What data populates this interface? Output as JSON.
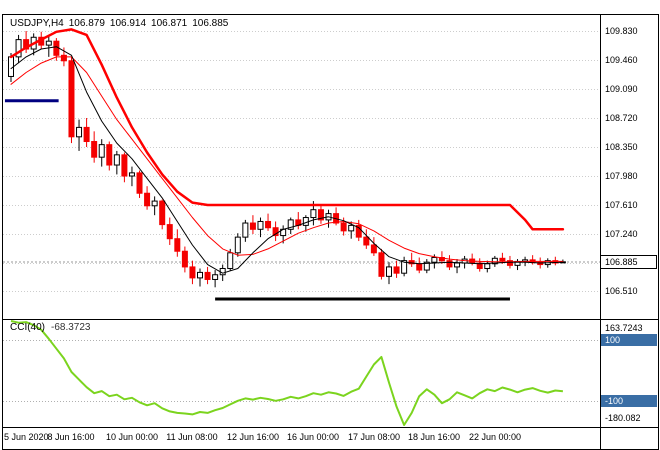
{
  "header": {
    "symbol": "USDJPY,H4",
    "open": "106.879",
    "high": "106.914",
    "low": "106.871",
    "close": "106.885"
  },
  "colors": {
    "background": "#ffffff",
    "frame": "#000000",
    "grid": "#cdcdcd",
    "separator": "#000000",
    "bull_body": "#ffffff",
    "bull_outline": "#000000",
    "bear_body": "#f40000",
    "current_price_line": "#999999",
    "cci_line": "#7bd41e",
    "level_box": "#3a6ea5",
    "level_line": "#b0b0b0",
    "blue_hline": "#000080",
    "black_hline": "#000000"
  },
  "chart_data": {
    "type": "candlestick",
    "symbol": "USDJPY",
    "timeframe": "H4",
    "main": {
      "current_price": 106.885,
      "current_price_label": "106.885",
      "price_axis": {
        "labels": [
          "109.830",
          "109.460",
          "109.090",
          "108.720",
          "108.350",
          "107.980",
          "107.610",
          "107.240",
          "106.510"
        ],
        "values": [
          109.83,
          109.46,
          109.09,
          108.72,
          108.35,
          107.98,
          107.61,
          107.24,
          106.51
        ]
      },
      "grid_prices": [
        109.83,
        109.46,
        109.09,
        108.72,
        108.35,
        107.98,
        107.61,
        107.24,
        106.87,
        106.51
      ],
      "candles": [
        [
          109.25,
          109.55,
          109.18,
          109.5
        ],
        [
          109.5,
          109.78,
          109.42,
          109.72
        ],
        [
          109.72,
          109.83,
          109.55,
          109.6
        ],
        [
          109.6,
          109.8,
          109.52,
          109.75
        ],
        [
          109.75,
          109.82,
          109.6,
          109.65
        ],
        [
          109.65,
          109.76,
          109.5,
          109.7
        ],
        [
          109.7,
          109.74,
          109.45,
          109.52
        ],
        [
          109.52,
          109.62,
          109.38,
          109.45
        ],
        [
          109.45,
          109.5,
          108.4,
          108.48
        ],
        [
          108.48,
          108.7,
          108.3,
          108.6
        ],
        [
          108.6,
          108.72,
          108.35,
          108.42
        ],
        [
          108.42,
          108.55,
          108.15,
          108.22
        ],
        [
          108.22,
          108.45,
          108.1,
          108.38
        ],
        [
          108.38,
          108.42,
          108.05,
          108.12
        ],
        [
          108.12,
          108.3,
          108.0,
          108.25
        ],
        [
          108.25,
          108.28,
          107.9,
          107.98
        ],
        [
          107.98,
          108.1,
          107.85,
          108.02
        ],
        [
          108.02,
          108.05,
          107.7,
          107.76
        ],
        [
          107.76,
          107.85,
          107.55,
          107.6
        ],
        [
          107.6,
          107.72,
          107.48,
          107.66
        ],
        [
          107.66,
          107.68,
          107.3,
          107.36
        ],
        [
          107.36,
          107.45,
          107.1,
          107.18
        ],
        [
          107.18,
          107.3,
          106.95,
          107.02
        ],
        [
          107.02,
          107.08,
          106.75,
          106.82
        ],
        [
          106.82,
          106.9,
          106.6,
          106.68
        ],
        [
          106.68,
          106.8,
          106.57,
          106.75
        ],
        [
          106.75,
          106.82,
          106.6,
          106.66
        ],
        [
          106.66,
          106.78,
          106.56,
          106.72
        ],
        [
          106.72,
          106.85,
          106.64,
          106.8
        ],
        [
          106.8,
          107.05,
          106.77,
          107.0
        ],
        [
          107.0,
          107.25,
          106.95,
          107.2
        ],
        [
          107.2,
          107.42,
          107.14,
          107.38
        ],
        [
          107.38,
          107.48,
          107.24,
          107.3
        ],
        [
          107.3,
          107.45,
          107.2,
          107.4
        ],
        [
          107.4,
          107.5,
          107.28,
          107.32
        ],
        [
          107.32,
          107.4,
          107.15,
          107.22
        ],
        [
          107.22,
          107.35,
          107.12,
          107.3
        ],
        [
          107.3,
          107.45,
          107.24,
          107.42
        ],
        [
          107.42,
          107.52,
          107.3,
          107.35
        ],
        [
          107.35,
          107.48,
          107.27,
          107.45
        ],
        [
          107.45,
          107.66,
          107.35,
          107.55
        ],
        [
          107.55,
          107.6,
          107.37,
          107.42
        ],
        [
          107.42,
          107.55,
          107.32,
          107.5
        ],
        [
          107.5,
          107.58,
          107.35,
          107.38
        ],
        [
          107.38,
          107.45,
          107.22,
          107.28
        ],
        [
          107.28,
          107.4,
          107.18,
          107.35
        ],
        [
          107.35,
          107.42,
          107.15,
          107.2
        ],
        [
          107.2,
          107.3,
          107.05,
          107.1
        ],
        [
          107.1,
          107.2,
          106.96,
          107.0
        ],
        [
          107.0,
          107.05,
          106.66,
          106.7
        ],
        [
          106.7,
          106.88,
          106.6,
          106.82
        ],
        [
          106.82,
          106.9,
          106.68,
          106.74
        ],
        [
          106.74,
          106.95,
          106.7,
          106.9
        ],
        [
          106.9,
          107.0,
          106.82,
          106.86
        ],
        [
          106.86,
          106.94,
          106.74,
          106.78
        ],
        [
          106.78,
          106.92,
          106.74,
          106.88
        ],
        [
          106.88,
          106.98,
          106.8,
          106.94
        ],
        [
          106.94,
          107.02,
          106.86,
          106.9
        ],
        [
          106.9,
          106.97,
          106.78,
          106.82
        ],
        [
          106.82,
          106.92,
          106.74,
          106.87
        ],
        [
          106.87,
          106.96,
          106.8,
          106.92
        ],
        [
          106.92,
          106.99,
          106.84,
          106.87
        ],
        [
          106.87,
          106.93,
          106.76,
          106.8
        ],
        [
          106.8,
          106.9,
          106.75,
          106.86
        ],
        [
          106.86,
          106.96,
          106.82,
          106.93
        ],
        [
          106.93,
          107.0,
          106.86,
          106.9
        ],
        [
          106.9,
          106.96,
          106.8,
          106.84
        ],
        [
          106.84,
          106.92,
          106.78,
          106.89
        ],
        [
          106.89,
          106.95,
          106.83,
          106.91
        ],
        [
          106.91,
          106.97,
          106.85,
          106.88
        ],
        [
          106.88,
          106.94,
          106.8,
          106.85
        ],
        [
          106.85,
          106.93,
          106.81,
          106.9
        ],
        [
          106.9,
          106.95,
          106.84,
          106.87
        ],
        [
          106.879,
          106.914,
          106.871,
          106.885
        ]
      ],
      "overlays": [
        {
          "name": "ma-slow-red",
          "color": "#ff0000",
          "width": 2.5,
          "points": [
            [
              0,
              109.5
            ],
            [
              2,
              109.62
            ],
            [
              4,
              109.72
            ],
            [
              6,
              109.82
            ],
            [
              8,
              109.85
            ],
            [
              10,
              109.78
            ],
            [
              12,
              109.4
            ],
            [
              14,
              108.98
            ],
            [
              16,
              108.6
            ],
            [
              18,
              108.28
            ],
            [
              20,
              108.0
            ],
            [
              22,
              107.78
            ],
            [
              24,
              107.64
            ],
            [
              26,
              107.61
            ],
            [
              66,
              107.61
            ],
            [
              68,
              107.42
            ],
            [
              69,
              107.3
            ],
            [
              73,
              107.3
            ]
          ]
        },
        {
          "name": "ma-mid-red",
          "color": "#ff0000",
          "width": 1,
          "points": [
            [
              0,
              109.15
            ],
            [
              2,
              109.3
            ],
            [
              4,
              109.42
            ],
            [
              6,
              109.5
            ],
            [
              8,
              109.5
            ],
            [
              10,
              109.3
            ],
            [
              12,
              109.0
            ],
            [
              14,
              108.7
            ],
            [
              16,
              108.45
            ],
            [
              18,
              108.2
            ],
            [
              20,
              107.95
            ],
            [
              22,
              107.7
            ],
            [
              24,
              107.45
            ],
            [
              26,
              107.22
            ],
            [
              28,
              107.05
            ],
            [
              30,
              106.97
            ],
            [
              32,
              106.98
            ],
            [
              34,
              107.05
            ],
            [
              36,
              107.15
            ],
            [
              38,
              107.25
            ],
            [
              40,
              107.32
            ],
            [
              42,
              107.38
            ],
            [
              44,
              107.4
            ],
            [
              46,
              107.37
            ],
            [
              48,
              107.28
            ],
            [
              50,
              107.16
            ],
            [
              52,
              107.06
            ],
            [
              54,
              106.99
            ],
            [
              56,
              106.95
            ],
            [
              58,
              106.92
            ],
            [
              60,
              106.9
            ],
            [
              62,
              106.89
            ],
            [
              64,
              106.885
            ],
            [
              66,
              106.885
            ],
            [
              68,
              106.89
            ],
            [
              70,
              106.89
            ],
            [
              73,
              106.89
            ]
          ]
        },
        {
          "name": "ma-fast-black",
          "color": "#000000",
          "width": 1,
          "points": [
            [
              0,
              109.35
            ],
            [
              2,
              109.5
            ],
            [
              4,
              109.6
            ],
            [
              6,
              109.63
            ],
            [
              8,
              109.52
            ],
            [
              10,
              109.05
            ],
            [
              12,
              108.68
            ],
            [
              14,
              108.4
            ],
            [
              16,
              108.2
            ],
            [
              18,
              107.95
            ],
            [
              20,
              107.7
            ],
            [
              22,
              107.4
            ],
            [
              24,
              107.1
            ],
            [
              26,
              106.85
            ],
            [
              28,
              106.74
            ],
            [
              30,
              106.8
            ],
            [
              32,
              107.0
            ],
            [
              34,
              107.18
            ],
            [
              36,
              107.3
            ],
            [
              38,
              107.35
            ],
            [
              40,
              107.42
            ],
            [
              42,
              107.46
            ],
            [
              44,
              107.41
            ],
            [
              46,
              107.32
            ],
            [
              48,
              107.12
            ],
            [
              50,
              106.95
            ],
            [
              52,
              106.88
            ],
            [
              54,
              106.86
            ],
            [
              56,
              106.87
            ],
            [
              58,
              106.88
            ],
            [
              60,
              106.87
            ],
            [
              62,
              106.86
            ],
            [
              64,
              106.87
            ],
            [
              66,
              106.88
            ],
            [
              68,
              106.88
            ],
            [
              70,
              106.87
            ],
            [
              73,
              106.88
            ]
          ]
        }
      ],
      "hlines": [
        {
          "name": "blue-horizontal-line",
          "color": "#000080",
          "width": 3,
          "price": 108.94,
          "bar_from": -0.8,
          "bar_to": 6.3
        },
        {
          "name": "black-horizontal-line",
          "color": "#000000",
          "width": 3,
          "price": 106.41,
          "bar_from": 27,
          "bar_to": 66
        }
      ]
    },
    "cci": {
      "label": "CCI(40)",
      "value_label": "-68.3723",
      "max_label": "163.7243",
      "min_label": "-180.082",
      "max": 163.7243,
      "min": -180.082,
      "levels": [
        100,
        -100
      ],
      "level_labels": [
        "100",
        "-100"
      ],
      "values": [
        163.7243,
        158,
        160,
        150,
        135,
        105,
        72,
        40,
        -5,
        -30,
        -55,
        -75,
        -68,
        -85,
        -80,
        -95,
        -90,
        -105,
        -115,
        -108,
        -125,
        -135,
        -140,
        -142,
        -145,
        -137,
        -140,
        -131,
        -124,
        -112,
        -100,
        -92,
        -96,
        -90,
        -94,
        -100,
        -95,
        -87,
        -92,
        -85,
        -75,
        -80,
        -72,
        -76,
        -84,
        -70,
        -60,
        -20,
        20,
        45,
        -40,
        -120,
        -180.082,
        -140,
        -85,
        -62,
        -80,
        -108,
        -95,
        -72,
        -82,
        -92,
        -75,
        -62,
        -68,
        -56,
        -63,
        -72,
        -63,
        -58,
        -67,
        -73,
        -66,
        -68.3723
      ]
    },
    "time_axis": {
      "labels": [
        "5 Jun 2020",
        "8 Jun 16:00",
        "10 Jun 00:00",
        "11 Jun 08:00",
        "12 Jun 16:00",
        "16 Jun 00:00",
        "17 Jun 08:00",
        "18 Jun 16:00",
        "22 Jun 00:00"
      ],
      "bars": [
        0,
        8,
        16,
        24,
        32,
        40,
        48,
        56,
        64
      ]
    }
  }
}
